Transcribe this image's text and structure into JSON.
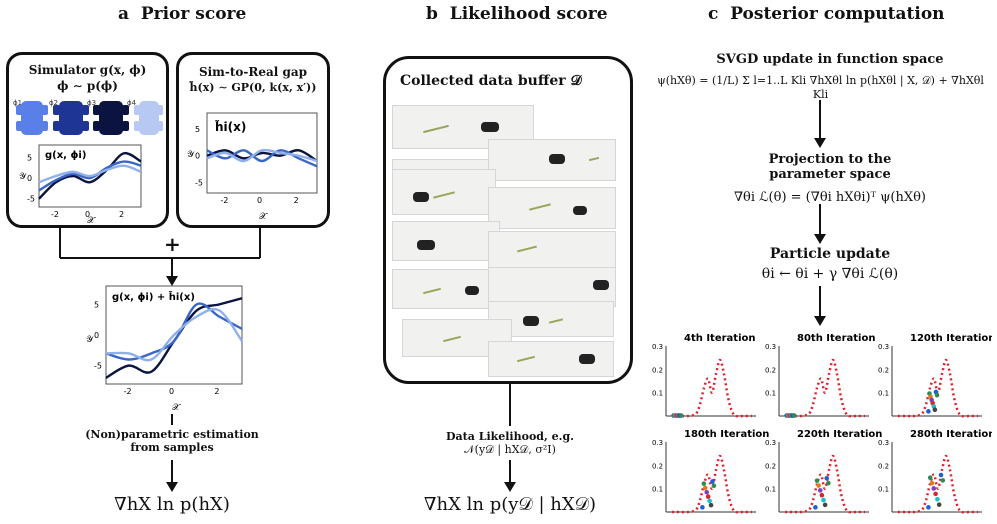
{
  "sections": {
    "a": {
      "letter": "a",
      "title": "Prior score"
    },
    "b": {
      "letter": "b",
      "title": "Likelihood score"
    },
    "c": {
      "letter": "c",
      "title": "Posterior computation"
    }
  },
  "prior": {
    "simulator_title": "Simulator g(x, ϕ)",
    "simulator_dist": "ϕ ∼ p(ϕ)",
    "phi_labels": [
      "ϕ1",
      "ϕ2",
      "ϕ3",
      "ϕ4"
    ],
    "sim_plot_label": "g(x, ϕi)",
    "gap_title": "Sim-to-Real gap",
    "gap_formula": "h̃(x) ∼ GP(0, k(x, x′))",
    "gap_plot_label": "h̃i(x)",
    "plus": "+",
    "sum_plot_label": "g(x, ϕi) + h̃i(x)",
    "estimation_line1": "(Non)parametric estimation",
    "estimation_line2": "from samples",
    "score": "∇hX ln p(hX)",
    "x_axis_symbol": "𝒳",
    "y_axis_symbol": "𝒴"
  },
  "likelihood": {
    "buffer_title": "Collected data buffer 𝒟",
    "data_line1": "Data Likelihood, e.g.",
    "data_line2": "𝒩(y𝒟 | hX𝒟, σ²I)",
    "score": "∇hX ln p(y𝒟 | hX𝒟)"
  },
  "posterior": {
    "svgd_title": "SVGD update in function space",
    "svgd_formula": "ψ(hXθ) = (1/L) Σ l=1..L  Kli ∇hXθl ln p(hXθl | X, 𝒟) + ∇hXθl Kli",
    "proj_title_1": "Projection to the",
    "proj_title_2": "parameter space",
    "proj_formula": "∇θi ℒ(θ) = (∇θi hXθi)ᵀ ψ(hXθ)",
    "particle_title": "Particle update",
    "particle_formula": "θi ← θi + γ ∇θi ℒ(θ)"
  },
  "chart_data": [
    {
      "type": "line",
      "title": "g(x, ϕi)",
      "xlabel": "𝒳",
      "ylabel": "𝒴",
      "xticks": [
        -2,
        0,
        2
      ],
      "yticks": [
        -5,
        0,
        5
      ],
      "xlim": [
        -3,
        3
      ],
      "ylim": [
        -7,
        8
      ],
      "x": [
        -3,
        -2,
        -1,
        0,
        1,
        2,
        3
      ],
      "series": [
        {
          "name": "ϕ-dark",
          "color": "#0b1440",
          "values": [
            -5,
            -1,
            0.5,
            -1,
            2,
            6,
            4
          ]
        },
        {
          "name": "ϕ-mid",
          "color": "#3a66c8",
          "values": [
            -3,
            -0.5,
            1,
            0,
            2.5,
            4,
            3
          ]
        },
        {
          "name": "ϕ-light",
          "color": "#8fb0ec",
          "values": [
            -1,
            0.5,
            1.5,
            0.5,
            2,
            3,
            1.5
          ]
        }
      ]
    },
    {
      "type": "line",
      "title": "h̃i(x)",
      "xlabel": "𝒳",
      "ylabel": "𝒴",
      "xticks": [
        -2,
        0,
        2
      ],
      "yticks": [
        -5,
        0,
        5
      ],
      "xlim": [
        -3,
        3
      ],
      "ylim": [
        -7,
        8
      ],
      "x": [
        -3,
        -2,
        -1,
        0,
        1,
        2,
        3
      ],
      "series": [
        {
          "name": "h-dark",
          "color": "#0b1440",
          "values": [
            0,
            1,
            -0.5,
            0.5,
            0,
            1,
            -1
          ]
        },
        {
          "name": "h-mid",
          "color": "#3a66c8",
          "values": [
            1,
            -0.5,
            1,
            -1,
            1,
            -0.5,
            -2
          ]
        },
        {
          "name": "h-light",
          "color": "#8fb0ec",
          "values": [
            -0.5,
            0.5,
            -1,
            1,
            0.5,
            0,
            -1
          ]
        }
      ]
    },
    {
      "type": "line",
      "title": "g(x, ϕi) + h̃i(x)",
      "xlabel": "𝒳",
      "ylabel": "𝒴",
      "xticks": [
        -2,
        0,
        2
      ],
      "yticks": [
        -5,
        0,
        5
      ],
      "xlim": [
        -3,
        3
      ],
      "ylim": [
        -8,
        8
      ],
      "x": [
        -3,
        -2,
        -1,
        0,
        1,
        2,
        3
      ],
      "series": [
        {
          "name": "s-dark",
          "color": "#0b1440",
          "values": [
            -7,
            -5,
            -6,
            -1,
            4,
            5,
            6
          ]
        },
        {
          "name": "s-mid",
          "color": "#3a66c8",
          "values": [
            -3,
            -4,
            -3,
            -1,
            5,
            3,
            1
          ]
        },
        {
          "name": "s-light",
          "color": "#8fb0ec",
          "values": [
            -3,
            -3,
            -4,
            0,
            3,
            4,
            -1
          ]
        }
      ]
    },
    {
      "type": "scatter",
      "panels": [
        {
          "title": "4th Iteration",
          "ylim": [
            0,
            0.3
          ],
          "yticks": [
            0.1,
            0.2,
            0.3
          ],
          "spread": 0.0
        },
        {
          "title": "80th Iteration",
          "ylim": [
            0,
            0.3
          ],
          "yticks": [
            0.1,
            0.2,
            0.3
          ],
          "spread": 0.0
        },
        {
          "title": "120th Iteration",
          "ylim": [
            0,
            0.3
          ],
          "yticks": [
            0.1,
            0.2,
            0.3
          ],
          "spread": 0.6
        },
        {
          "title": "180th Iteration",
          "ylim": [
            0,
            0.3
          ],
          "yticks": [
            0.1,
            0.2,
            0.3
          ],
          "spread": 0.8
        },
        {
          "title": "220th Iteration",
          "ylim": [
            0,
            0.3
          ],
          "yticks": [
            0.1,
            0.2,
            0.3
          ],
          "spread": 0.9
        },
        {
          "title": "280th Iteration",
          "ylim": [
            0,
            0.3
          ],
          "yticks": [
            0.1,
            0.2,
            0.3
          ],
          "spread": 1.0
        }
      ],
      "target_density_x": [
        0,
        0.1,
        0.2,
        0.3,
        0.35,
        0.4,
        0.45,
        0.5,
        0.55,
        0.6,
        0.65,
        0.7,
        0.75,
        0.8,
        0.9,
        1.0
      ],
      "target_density_y": [
        0,
        0,
        0,
        0.01,
        0.05,
        0.12,
        0.16,
        0.1,
        0.18,
        0.24,
        0.18,
        0.08,
        0.02,
        0,
        0,
        0
      ]
    }
  ],
  "colors": {
    "dark": "#0b1440",
    "mid": "#3a66c8",
    "light": "#8fb0ec",
    "density": "#e0212a"
  }
}
